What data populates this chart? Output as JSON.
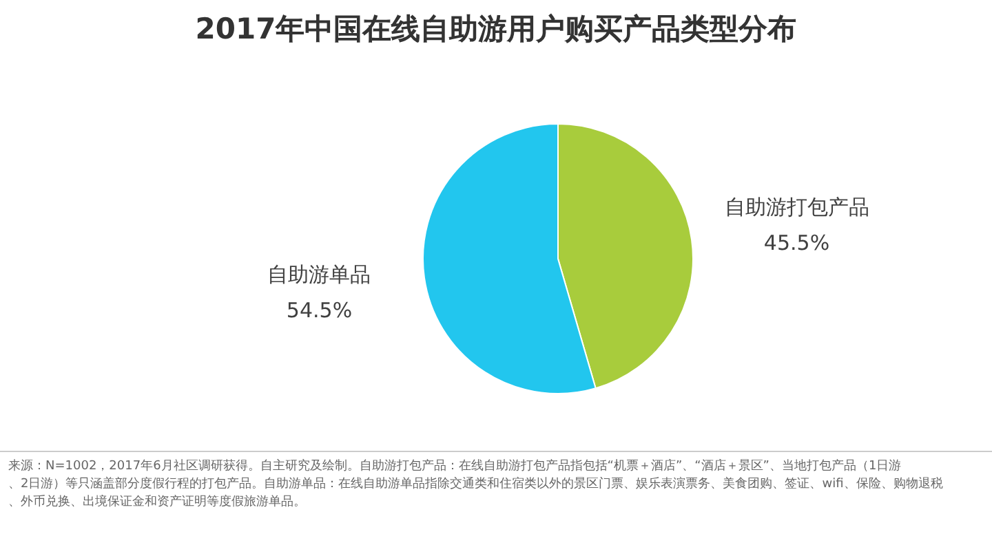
{
  "chart_data": {
    "type": "pie",
    "title": "2017年中国在线自助游用户购买产品类型分布",
    "categories": [
      "自助游打包产品",
      "自助游单品"
    ],
    "values": [
      45.5,
      54.5
    ],
    "colors": [
      "#a8cc3c",
      "#22c6ee"
    ],
    "value_labels": [
      "45.5%",
      "54.5%"
    ],
    "legend": false,
    "annotations": [
      "来源：N=1002，2017年6月社区调研获得。自主研究及绘制。自助游打包产品：在线自助游打包产品指包括“机票＋酒店”、“酒店＋景区”、当地打包产品（1日游、2日游）等只涵盖部分度假行程的打包产品。自助游单品：在线自助游单品指除交通类和住宿类以外的景区门票、娱乐表演票务、美食团购、签证、wifi、保险、购物退税、外币兑换、出境保证金和资产证明等度假旅游单品。"
    ]
  }
}
